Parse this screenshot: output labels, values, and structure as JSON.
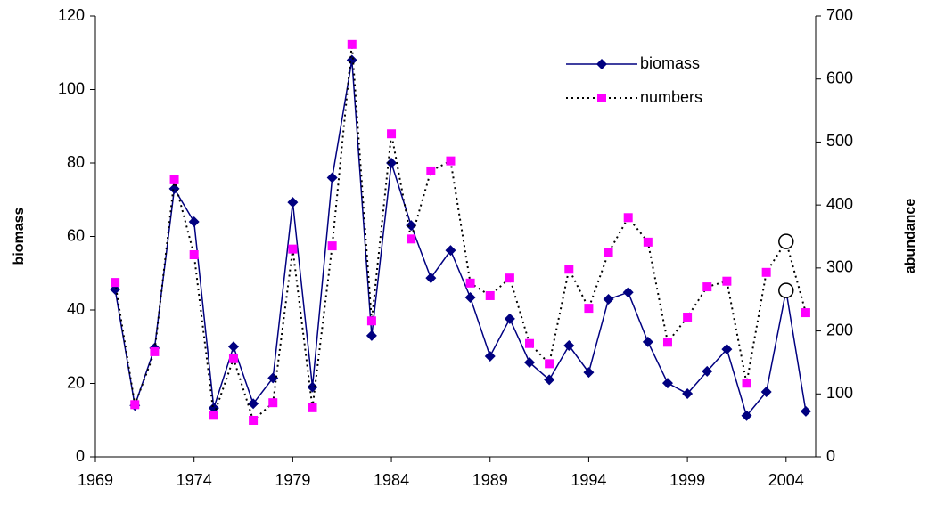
{
  "chart_data": {
    "type": "line",
    "x": [
      1970,
      1971,
      1972,
      1973,
      1974,
      1975,
      1976,
      1977,
      1978,
      1979,
      1980,
      1981,
      1982,
      1983,
      1984,
      1985,
      1986,
      1987,
      1988,
      1989,
      1990,
      1991,
      1992,
      1993,
      1994,
      1995,
      1996,
      1997,
      1998,
      1999,
      2000,
      2001,
      2002,
      2003,
      2004,
      2005
    ],
    "series": [
      {
        "name": "biomass",
        "color": "#000080",
        "marker": "diamond",
        "marker_color": "#000080",
        "dash": "solid",
        "axis": "y",
        "values": [
          45.6,
          14,
          29.6,
          73,
          64,
          13.3,
          30,
          14.5,
          21.5,
          69.3,
          19,
          76,
          108,
          33,
          80,
          63,
          48.7,
          56.2,
          43.4,
          27.4,
          37.6,
          25.7,
          21,
          30.3,
          23,
          42.9,
          44.8,
          31.3,
          20.1,
          17.2,
          23.3,
          29.3,
          11.2,
          17.7,
          45.3,
          12.4
        ]
      },
      {
        "name": "numbers",
        "color": "#000000",
        "marker": "square",
        "marker_color": "#ff00ff",
        "dash": "dotted",
        "axis": "y2",
        "values": [
          277,
          83,
          167,
          440,
          321,
          66,
          156,
          58,
          86,
          330,
          78,
          335,
          655,
          216,
          513,
          346,
          454,
          470,
          276,
          256,
          284,
          180,
          148,
          298,
          236,
          324,
          380,
          341,
          182,
          222,
          270,
          279,
          117,
          293,
          342,
          229
        ]
      }
    ],
    "highlight_x": [
      2004
    ],
    "xlim": [
      1969,
      2005.5
    ],
    "xticks": [
      1969,
      1974,
      1979,
      1984,
      1989,
      1994,
      1999,
      2004
    ],
    "ylim": [
      0,
      120
    ],
    "yticks": [
      0,
      20,
      40,
      60,
      80,
      100,
      120
    ],
    "ylabel": "biomass",
    "y2lim": [
      0,
      700
    ],
    "y2ticks": [
      0,
      100,
      200,
      300,
      400,
      500,
      600,
      700
    ],
    "y2label": "abundance",
    "legend": "top-right",
    "grid": false
  }
}
